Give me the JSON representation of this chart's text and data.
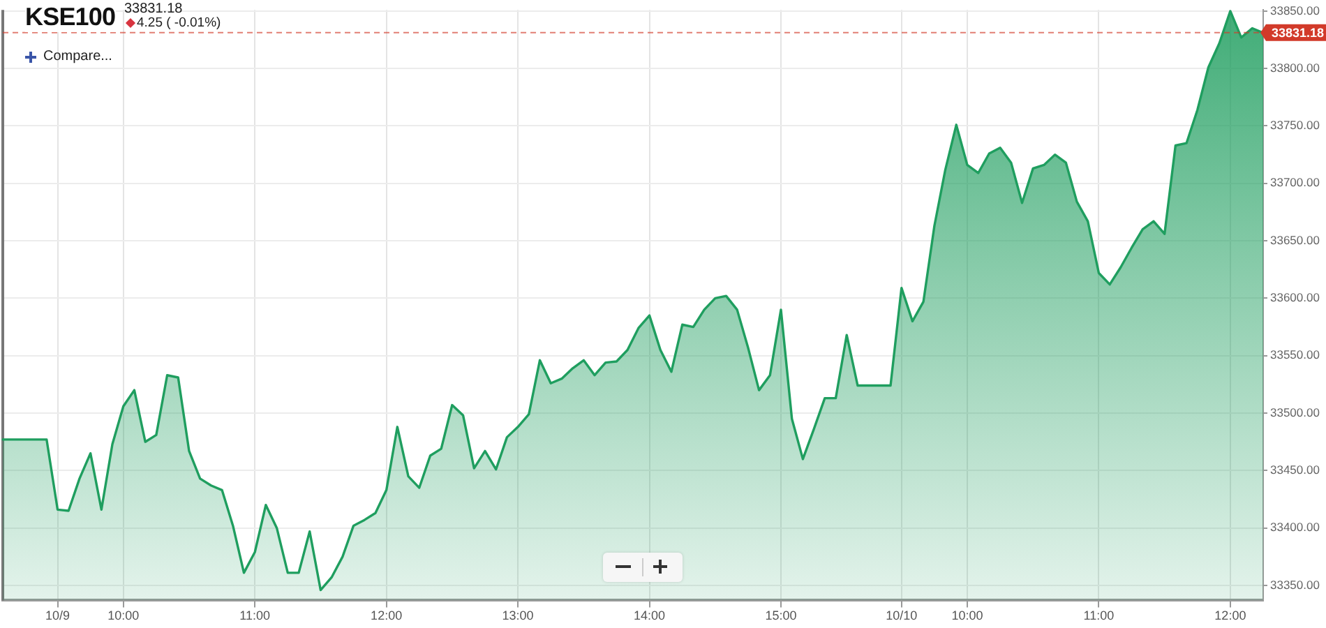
{
  "chart_data": {
    "type": "area",
    "title": "KSE100",
    "subtitle": "33831.18",
    "annotations": [
      "4.25 ( -0.01%)",
      "Compare..."
    ],
    "categories": [
      null,
      null,
      null,
      null,
      null,
      "10/9",
      null,
      null,
      null,
      null,
      null,
      "10:00",
      null,
      null,
      null,
      null,
      null,
      null,
      null,
      null,
      null,
      null,
      null,
      "11:00",
      null,
      null,
      null,
      null,
      null,
      null,
      null,
      null,
      null,
      null,
      null,
      "12:00",
      null,
      null,
      null,
      null,
      null,
      null,
      null,
      null,
      null,
      null,
      null,
      "13:00",
      null,
      null,
      null,
      null,
      null,
      null,
      null,
      null,
      null,
      null,
      null,
      "14:00",
      null,
      null,
      null,
      null,
      null,
      null,
      null,
      null,
      null,
      null,
      null,
      "15:00",
      null,
      null,
      null,
      null,
      null,
      null,
      null,
      null,
      null,
      null,
      "10/10",
      null,
      null,
      null,
      null,
      null,
      "10:00",
      null,
      null,
      null,
      null,
      null,
      null,
      null,
      null,
      null,
      null,
      null,
      "11:00",
      null,
      null,
      null,
      null,
      null,
      null,
      null,
      null,
      null,
      null,
      null,
      "12:00",
      null,
      null,
      null
    ],
    "series": [
      {
        "color": "#1f9e5f",
        "values": [
          33477,
          33477,
          33477,
          33477,
          33477,
          33416,
          33415,
          33443,
          33465,
          33416,
          33473,
          33506,
          33520,
          33475,
          33481,
          33533,
          33531,
          33467,
          33443,
          33437,
          33433,
          33402,
          33361,
          33379,
          33420,
          33400,
          33361,
          33361,
          33397,
          33346,
          33357,
          33375,
          33402,
          33407,
          33413,
          33433,
          33488,
          33445,
          33435,
          33463,
          33469,
          33507,
          33498,
          33452,
          33467,
          33451,
          33479,
          33488,
          33499,
          33546,
          33526,
          33530,
          33539,
          33546,
          33533,
          33544,
          33545,
          33555,
          33574,
          33585,
          33555,
          33536,
          33577,
          33575,
          33590,
          33600,
          33602,
          33590,
          33557,
          33520,
          33533,
          33590,
          33495,
          33460,
          33486,
          33513,
          33513,
          33568,
          33524,
          33524,
          33524,
          33524,
          33609,
          33580,
          33597,
          33663,
          33712,
          33751,
          33716,
          33709,
          33726,
          33731,
          33718,
          33683,
          33713,
          33716,
          33725,
          33718,
          33684,
          33667,
          33622,
          33612,
          33627,
          33644,
          33660,
          33667,
          33656,
          33733,
          33735,
          33764,
          33801,
          33822,
          33850,
          33827,
          33835,
          33831
        ]
      }
    ],
    "ylim": [
      33337,
      33851
    ],
    "yticks": [
      {
        "value": 33350,
        "label": "33350.00"
      },
      {
        "value": 33400,
        "label": "33400.00"
      },
      {
        "value": 33450,
        "label": "33450.00"
      },
      {
        "value": 33500,
        "label": "33500.00"
      },
      {
        "value": 33550,
        "label": "33550.00"
      },
      {
        "value": 33600,
        "label": "33600.00"
      },
      {
        "value": 33650,
        "label": "33650.00"
      },
      {
        "value": 33700,
        "label": "33700.00"
      },
      {
        "value": 33750,
        "label": "33750.00"
      },
      {
        "value": 33800,
        "label": "33800.00"
      },
      {
        "value": 33850,
        "label": "33850.00"
      }
    ],
    "grid": true,
    "marker": "none",
    "ref_lines": [
      {
        "axis": "y",
        "value": 33831.18,
        "label": "33831.18",
        "color": "#d23a2a",
        "line_style": "dashed"
      }
    ]
  }
}
